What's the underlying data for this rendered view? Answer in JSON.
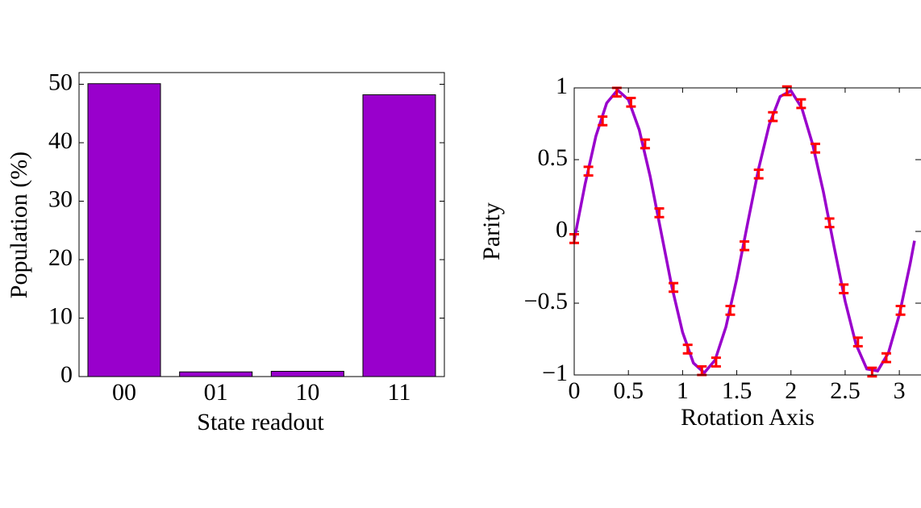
{
  "chart_data": [
    {
      "type": "bar",
      "xlabel": "State readout",
      "ylabel": "Population (%)",
      "categories": [
        "00",
        "01",
        "10",
        "11"
      ],
      "values": [
        50.1,
        0.8,
        0.9,
        48.2
      ],
      "color": "#9900cc",
      "ylim": [
        0,
        52
      ],
      "yticks": [
        0,
        10,
        20,
        30,
        40,
        50
      ]
    },
    {
      "type": "errorline",
      "xlabel": "Rotation Axis",
      "ylabel": "Parity",
      "points": {
        "color": "#ff0000",
        "x": [
          0,
          0.131,
          0.262,
          0.393,
          0.524,
          0.654,
          0.785,
          0.916,
          1.047,
          1.178,
          1.309,
          1.44,
          1.571,
          1.702,
          1.833,
          1.963,
          2.094,
          2.225,
          2.356,
          2.487,
          2.618,
          2.749,
          2.88,
          3.011
        ],
        "values": [
          -0.05,
          0.42,
          0.77,
          0.97,
          0.9,
          0.61,
          0.13,
          -0.39,
          -0.82,
          -0.97,
          -0.91,
          -0.55,
          -0.1,
          0.4,
          0.8,
          0.98,
          0.89,
          0.58,
          0.06,
          -0.4,
          -0.77,
          -0.98,
          -0.88,
          -0.55
        ],
        "errors": [
          0.03,
          0.03,
          0.03,
          0.03,
          0.03,
          0.03,
          0.03,
          0.03,
          0.03,
          0.03,
          0.03,
          0.03,
          0.03,
          0.03,
          0.03,
          0.03,
          0.03,
          0.03,
          0.03,
          0.03,
          0.03,
          0.03,
          0.03,
          0.03
        ]
      },
      "fit": {
        "color": "#9900cc",
        "x": [
          0,
          0.1,
          0.2,
          0.3,
          0.4,
          0.5,
          0.6,
          0.7,
          0.8,
          0.9,
          1.0,
          1.1,
          1.2,
          1.3,
          1.4,
          1.5,
          1.6,
          1.7,
          1.8,
          1.9,
          2.0,
          2.1,
          2.2,
          2.3,
          2.4,
          2.5,
          2.6,
          2.7,
          2.8,
          2.9,
          3.0,
          3.1,
          3.14
        ],
        "values": [
          -0.059,
          0.328,
          0.664,
          0.895,
          0.985,
          0.918,
          0.708,
          0.386,
          0.002,
          -0.382,
          -0.703,
          -0.917,
          -0.985,
          -0.896,
          -0.665,
          -0.33,
          0.056,
          0.432,
          0.744,
          0.94,
          0.98,
          0.86,
          0.607,
          0.273,
          -0.114,
          -0.486,
          -0.786,
          -0.958,
          -0.972,
          -0.845,
          -0.58,
          -0.225,
          -0.065
        ]
      },
      "xlim": [
        0,
        3.2
      ],
      "ylim": [
        -1,
        1
      ],
      "xticks": [
        0,
        0.5,
        1,
        1.5,
        2,
        2.5,
        3
      ],
      "yticks": [
        {
          "value": -1,
          "label": "−1"
        },
        {
          "value": -0.5,
          "label": "−0.5"
        },
        0,
        0.5,
        1
      ]
    }
  ]
}
